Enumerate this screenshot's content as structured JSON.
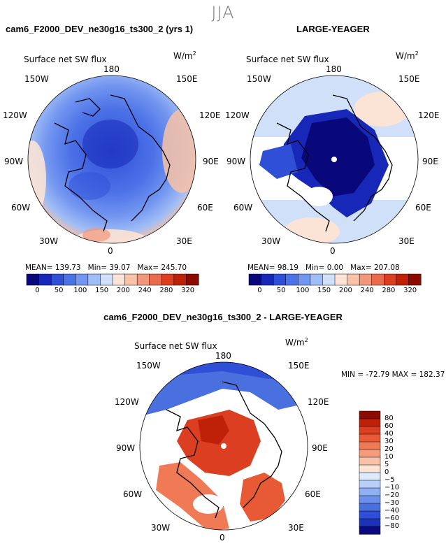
{
  "season": "JJA",
  "units_base": "W/m",
  "units_exp": "2",
  "panels": [
    {
      "id": "test",
      "title": "cam6_F2000_DEV_ne30g16_ts300_2 (yrs 1)",
      "variable": "Surface net SW flux",
      "stats": {
        "mean_label": "MEAN=",
        "mean": "139.73",
        "min_label": "Min=",
        "min": "39.07",
        "max_label": "Max=",
        "max": "245.70"
      }
    },
    {
      "id": "obs",
      "title": "LARGE-YEAGER",
      "variable": "Surface net SW flux",
      "stats": {
        "mean_label": "MEAN=",
        "mean": "98.19",
        "min_label": "Min=",
        "min": "0.00",
        "max_label": "Max=",
        "max": "207.08"
      }
    },
    {
      "id": "diff",
      "title": "cam6_F2000_DEV_ne30g16_ts300_2 - LARGE-YEAGER",
      "variable": "Surface net SW flux",
      "stats_text": "MIN = -72.79  MAX = 182.37"
    }
  ],
  "lon_labels": {
    "top": "180",
    "bottom": "0",
    "left": [
      "150W",
      "120W",
      "90W",
      "60W",
      "30W"
    ],
    "right": [
      "150E",
      "120E",
      "90E",
      "60E",
      "30E"
    ]
  },
  "colorbar_abs": {
    "ticks": [
      "0",
      "50",
      "100",
      "150",
      "200",
      "240",
      "280",
      "320"
    ],
    "colors": [
      "#08087a",
      "#1728b8",
      "#2e4fd6",
      "#4c72e8",
      "#7396f0",
      "#a0bdf5",
      "#cfe0f8",
      "#fbe3d6",
      "#f7c2a6",
      "#f2977a",
      "#ea6a4e",
      "#dc3e22",
      "#bf2008",
      "#8c0a00"
    ]
  },
  "colorbar_diff": {
    "ticks": [
      "80",
      "60",
      "40",
      "30",
      "20",
      "10",
      "5",
      "0",
      "−5",
      "−10",
      "−20",
      "−30",
      "−40",
      "−60",
      "−80"
    ],
    "colors": [
      "#8c0a00",
      "#bf2008",
      "#dc3e22",
      "#e85a36",
      "#f07a56",
      "#f59c7e",
      "#f8c2a8",
      "#fbe3d6",
      "#dce8fb",
      "#b8cff7",
      "#8fb0f2",
      "#6a90ea",
      "#4a70e0",
      "#2e4fd6",
      "#1e32b8",
      "#0a0a80"
    ]
  }
}
